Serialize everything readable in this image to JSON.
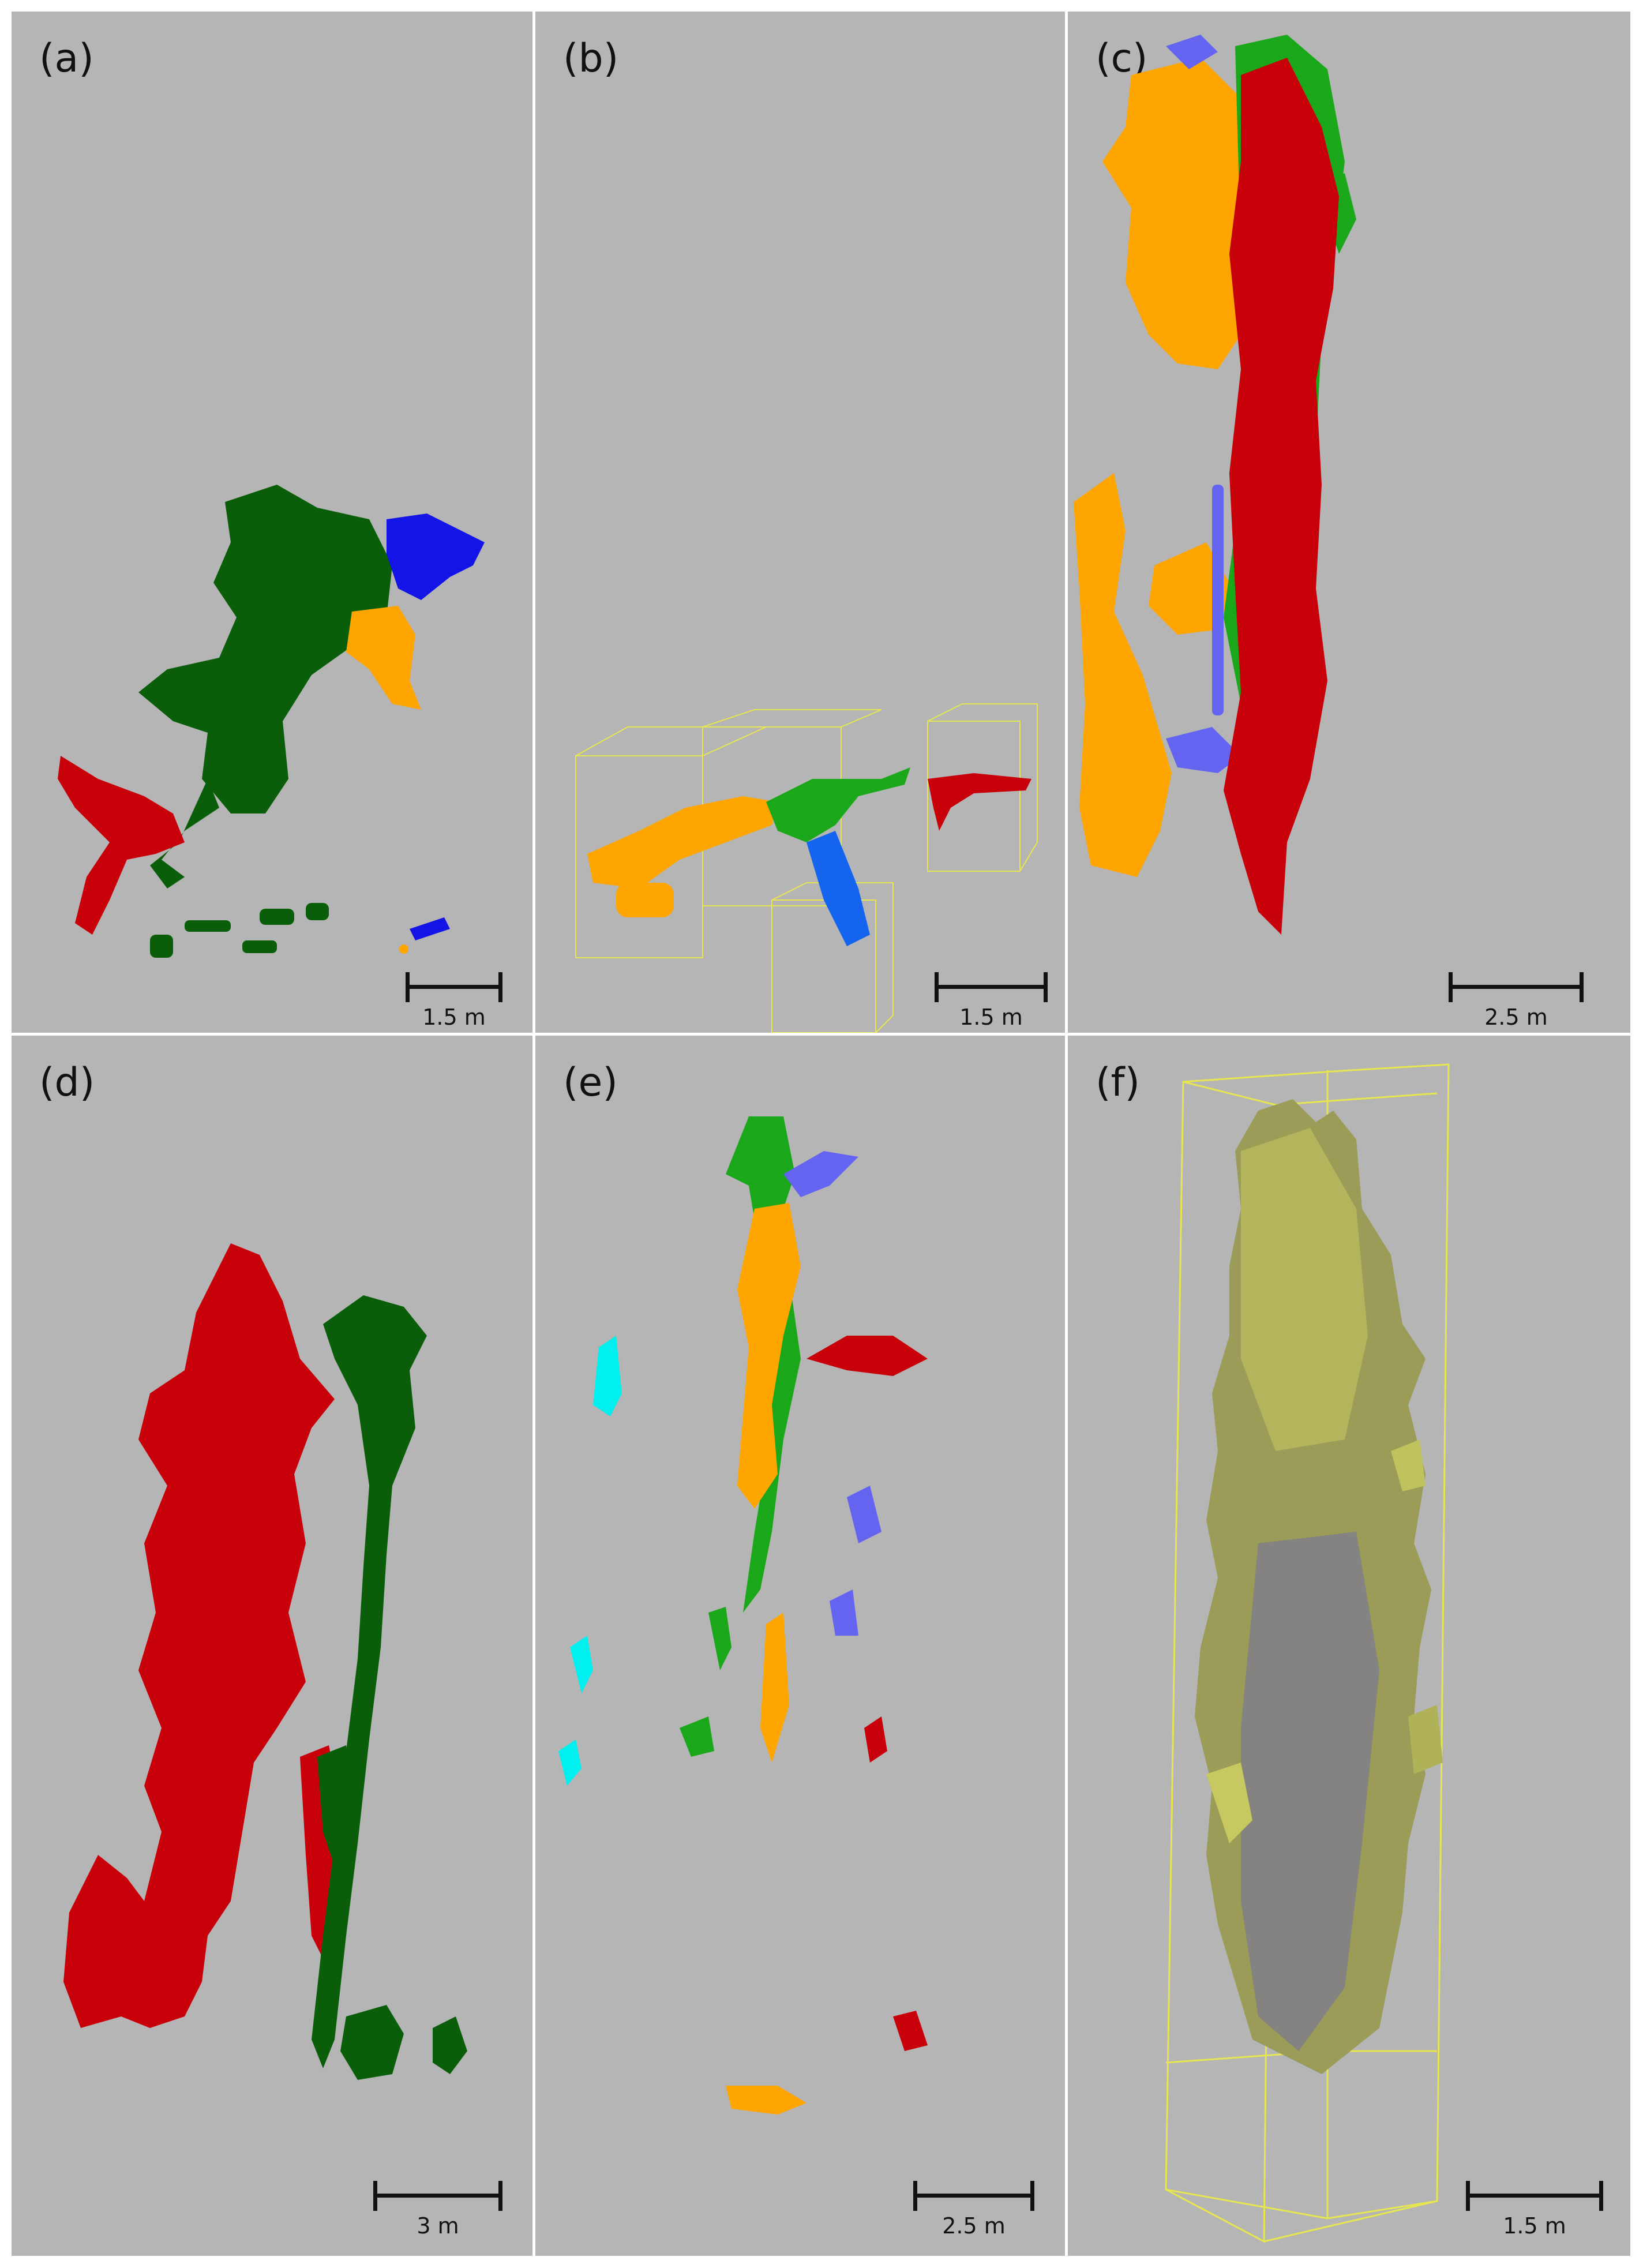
{
  "panels": [
    {
      "label": "(a)",
      "scale": "1.5 m"
    },
    {
      "label": "(b)",
      "scale": "1.5 m"
    },
    {
      "label": "(c)",
      "scale": "2.5 m"
    },
    {
      "label": "(d)",
      "scale": "3 m"
    },
    {
      "label": "(e)",
      "scale": "2.5 m"
    },
    {
      "label": "(f)",
      "scale": "1.5 m"
    }
  ],
  "colors": {
    "background": "#b5b5b5",
    "dark_green": "#0a5e0a",
    "green": "#1aa81a",
    "red": "#c8000a",
    "orange": "#ffa500",
    "blue": "#1414e6",
    "light_blue": "#6464f0",
    "cyan": "#00f0f0",
    "yellow_box": "#e6e650",
    "tree_olive": "#a8aa4a"
  }
}
